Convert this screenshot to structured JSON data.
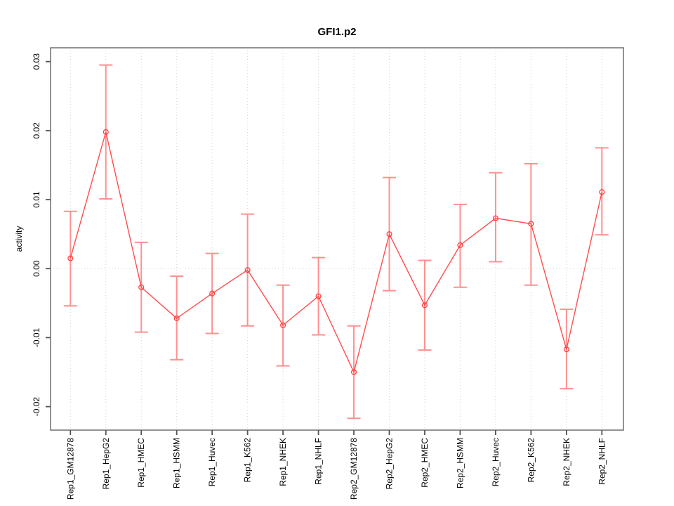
{
  "figure": {
    "background": "#ffffff"
  },
  "chart_data": {
    "type": "line",
    "title": "GFI1.p2",
    "xlabel": "",
    "ylabel": "activity",
    "legend": "none",
    "error_bars": true,
    "marker": "open-circle",
    "categories": [
      "Rep1_GM12878",
      "Rep1_HepG2",
      "Rep1_HMEC",
      "Rep1_HSMM",
      "Rep1_Huvec",
      "Rep1_K562",
      "Rep1_NHEK",
      "Rep1_NHLF",
      "Rep2_GM12878",
      "Rep2_HepG2",
      "Rep2_HMEC",
      "Rep2_HSMM",
      "Rep2_Huvec",
      "Rep2_K562",
      "Rep2_NHEK",
      "Rep2_NHLF"
    ],
    "series": [
      {
        "name": "activity",
        "values": [
          0.0015,
          0.0198,
          -0.0027,
          -0.0072,
          -0.0036,
          -0.0002,
          -0.0082,
          -0.004,
          -0.015,
          0.005,
          -0.0053,
          0.0034,
          0.0073,
          0.0065,
          -0.0117,
          0.0111
        ],
        "upper": [
          0.0083,
          0.0295,
          0.0038,
          -0.0011,
          0.0022,
          0.0079,
          -0.0024,
          0.0016,
          -0.0083,
          0.0132,
          0.0012,
          0.0093,
          0.0139,
          0.0152,
          -0.0059,
          0.0175
        ],
        "lower": [
          -0.0054,
          0.0101,
          -0.0092,
          -0.0132,
          -0.0094,
          -0.0083,
          -0.0141,
          -0.0096,
          -0.0217,
          -0.0032,
          -0.0118,
          -0.0027,
          0.001,
          -0.0024,
          -0.0174,
          0.0049
        ]
      }
    ],
    "ylim": [
      -0.0234,
      0.032
    ],
    "yticks": {
      "values": [
        0.03,
        0.02,
        0.01,
        0,
        -0.01,
        -0.02
      ],
      "labels": [
        "0.03",
        "0.02",
        "0.01",
        "0.00",
        "-0.01",
        "-0.02"
      ]
    },
    "grid": {
      "vertical": "dotted at each category",
      "horizontal": "dotted at zero only"
    },
    "colors": {
      "series_line": "#ff4d4d",
      "marker": "#ff4040",
      "error_bar": "#ff9090",
      "grid": "#d4d4d4",
      "axis_box": "#6e6e6e",
      "tick": "#555555",
      "text": "#000000"
    }
  }
}
